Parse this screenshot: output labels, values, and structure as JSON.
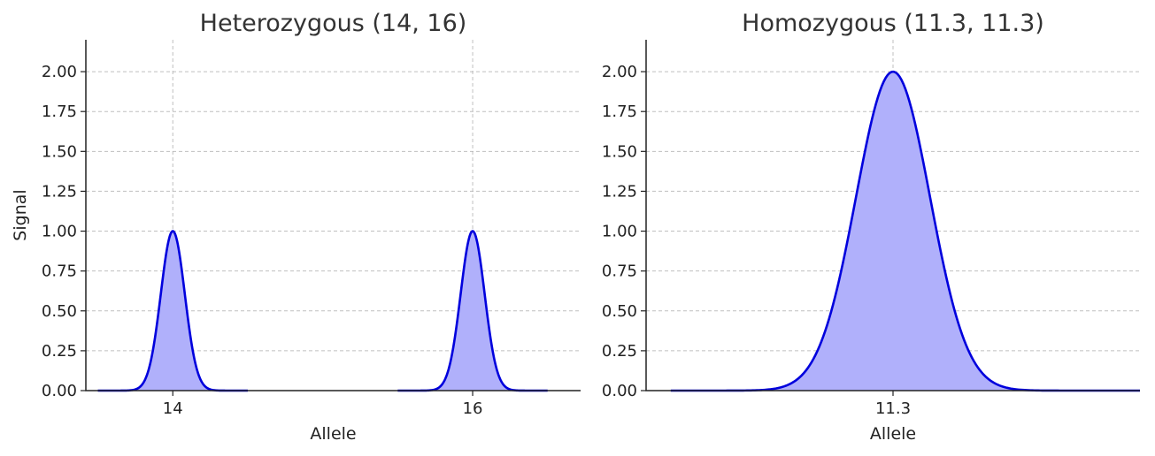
{
  "chart_data": [
    {
      "type": "area",
      "title": "Heterozygous (14, 16)",
      "xlabel": "Allele",
      "ylabel": "Signal",
      "xticks": [
        14,
        16
      ],
      "xtick_labels": [
        "14",
        "16"
      ],
      "xlim": [
        13.42,
        16.72
      ],
      "ylim": [
        0,
        2.2
      ],
      "yticks": [
        0,
        0.25,
        0.5,
        0.75,
        1.0,
        1.25,
        1.5,
        1.75,
        2.0
      ],
      "ytick_labels": [
        "0.00",
        "0.25",
        "0.50",
        "0.75",
        "1.00",
        "1.25",
        "1.50",
        "1.75",
        "2.00"
      ],
      "grid": true,
      "series": [
        {
          "peaks": [
            {
              "center": 14,
              "height": 1.0,
              "sigma": 0.08,
              "x_range": [
                13.5,
                14.5
              ]
            },
            {
              "center": 16,
              "height": 1.0,
              "sigma": 0.08,
              "x_range": [
                15.5,
                16.5
              ]
            }
          ],
          "line_color": "#0000dd",
          "fill_color": "#b0b0fb"
        }
      ]
    },
    {
      "type": "area",
      "title": "Homozygous (11.3, 11.3)",
      "xlabel": "Allele",
      "ylabel": "",
      "xticks": [
        11.3
      ],
      "xtick_labels": [
        "11.3"
      ],
      "xlim": [
        10.3,
        12.3
      ],
      "ylim": [
        0,
        2.2
      ],
      "yticks": [
        0,
        0.25,
        0.5,
        0.75,
        1.0,
        1.25,
        1.5,
        1.75,
        2.0
      ],
      "ytick_labels": [
        "0.00",
        "0.25",
        "0.50",
        "0.75",
        "1.00",
        "1.25",
        "1.50",
        "1.75",
        "2.00"
      ],
      "grid": true,
      "series": [
        {
          "peaks": [
            {
              "center": 11.3,
              "height": 2.0,
              "sigma": 0.15,
              "x_range": [
                10.4,
                12.3
              ]
            }
          ],
          "line_color": "#0000dd",
          "fill_color": "#b0b0fb"
        }
      ]
    }
  ]
}
